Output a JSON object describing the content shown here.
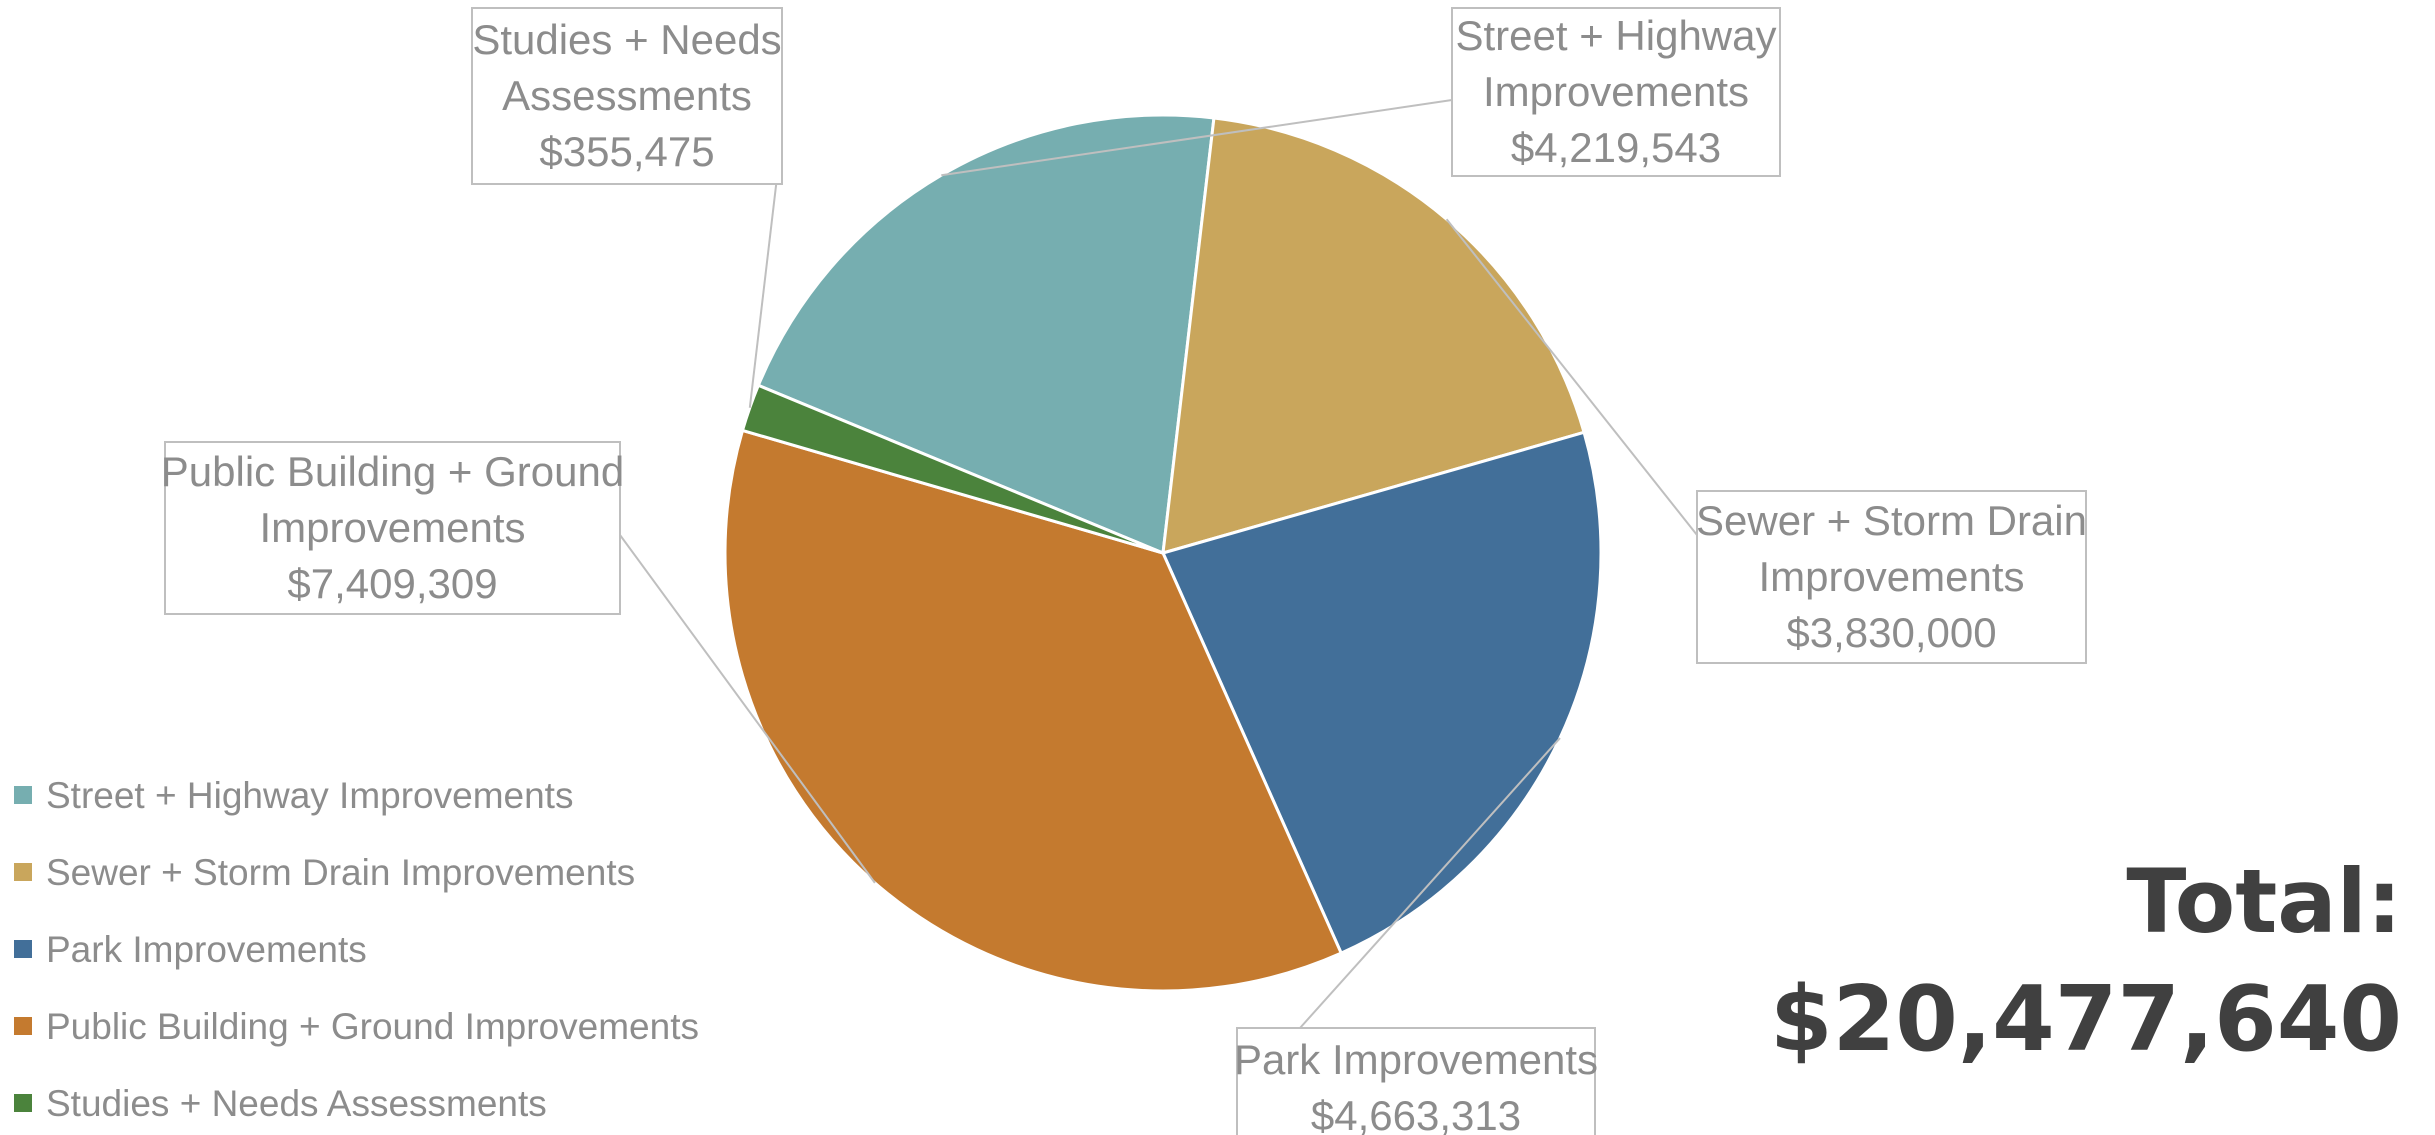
{
  "chart_data": {
    "type": "pie",
    "title": "",
    "slices": [
      {
        "label": "Street + Highway Improvements",
        "callout_lines": [
          "Street + Highway",
          "Improvements"
        ],
        "value": 4219543,
        "value_label": "$4,219,543",
        "color": "#76aeb0"
      },
      {
        "label": "Sewer + Storm Drain Improvements",
        "callout_lines": [
          "Sewer + Storm Drain",
          "Improvements"
        ],
        "value": 3830000,
        "value_label": "$3,830,000",
        "color": "#c9a65c"
      },
      {
        "label": "Park Improvements",
        "callout_lines": [
          "Park Improvements"
        ],
        "value": 4663313,
        "value_label": "$4,663,313",
        "color": "#426f99"
      },
      {
        "label": "Public Building + Ground Improvements",
        "callout_lines": [
          "Public Building + Ground",
          "Improvements"
        ],
        "value": 7409309,
        "value_label": "$7,409,309",
        "color": "#c47a2f"
      },
      {
        "label": "Studies + Needs Assessments",
        "callout_lines": [
          "Studies + Needs",
          "Assessments"
        ],
        "value": 355475,
        "value_label": "$355,475",
        "color": "#4b833c"
      }
    ],
    "legend_position": "bottom-left"
  },
  "total": {
    "label": "Total:",
    "value": "$20,477,640"
  },
  "colors": {
    "callout_text": "#8c8c8c",
    "callout_border": "#bfbfbf",
    "total_text": "#404040"
  }
}
